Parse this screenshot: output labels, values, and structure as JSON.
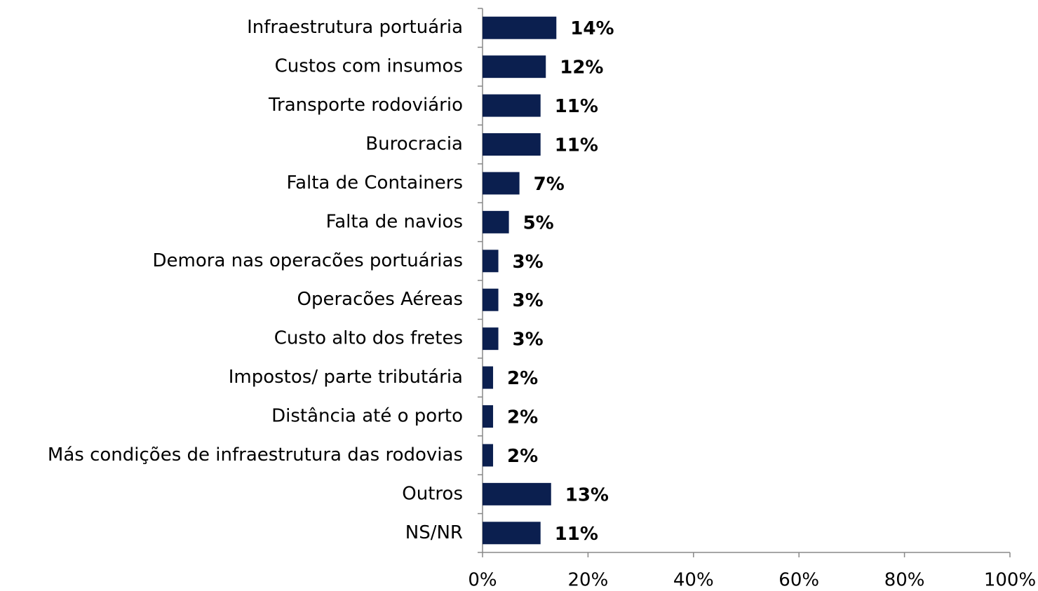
{
  "chart_data": {
    "type": "bar",
    "orientation": "horizontal",
    "categories": [
      "Infraestrutura portuária",
      "Custos com insumos",
      "Transporte rodoviário",
      "Burocracia",
      "Falta de Containers",
      "Falta de navios",
      "Demora nas operacões portuárias",
      "Operacões Aéreas",
      "Custo alto dos fretes",
      "Impostos/ parte tributária",
      "Distância até o porto",
      "Más condições de infraestrutura das rodovias",
      "Outros",
      "NS/NR"
    ],
    "values": [
      14,
      12,
      11,
      11,
      7,
      5,
      3,
      3,
      3,
      2,
      2,
      2,
      13,
      11
    ],
    "value_labels": [
      "14%",
      "12%",
      "11%",
      "11%",
      "7%",
      "5%",
      "3%",
      "3%",
      "3%",
      "2%",
      "2%",
      "2%",
      "13%",
      "11%"
    ],
    "color": "#0b1f4f",
    "xlim": [
      0,
      100
    ],
    "xticks": [
      {
        "value": 0,
        "label": "0%"
      },
      {
        "value": 20,
        "label": "20%"
      },
      {
        "value": 40,
        "label": "40%"
      },
      {
        "value": 60,
        "label": "60%"
      },
      {
        "value": 80,
        "label": "80%"
      },
      {
        "value": 100,
        "label": "100%"
      }
    ],
    "grid": false
  }
}
